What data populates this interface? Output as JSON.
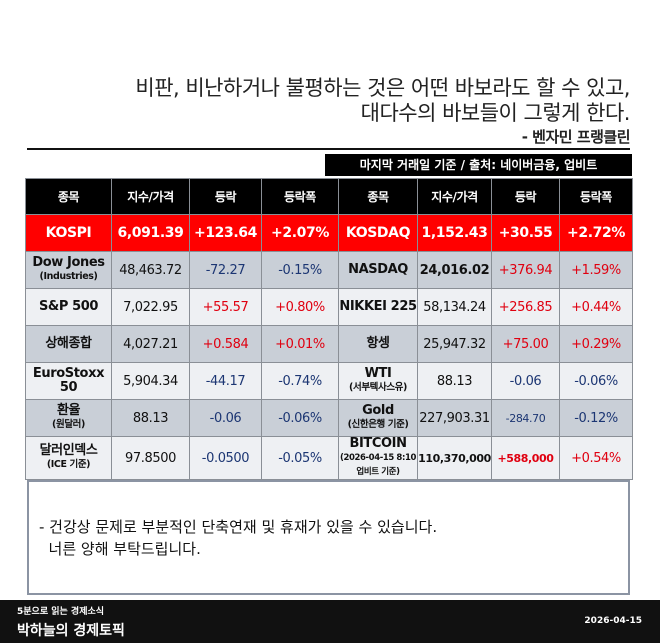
{
  "quote": {
    "line1": "비판, 비난하거나 불평하는 것은 어떤 바보라도 할 수 있고,",
    "line2": "대다수의 바보들이 그렇게 한다.",
    "author": "- 벤자민 프랭클린"
  },
  "source": "마지막 거래일 기준 / 출처: 네이버금융, 업비트",
  "headers": [
    "종목",
    "지수/가격",
    "등락",
    "등락폭",
    "종목",
    "지수/가격",
    "등락",
    "등락폭"
  ],
  "rows": [
    {
      "style": "hl",
      "l": {
        "name": "KOSPI",
        "sub": "",
        "price": "6,091.39",
        "chg": "+123.64",
        "pct": "+2.07%",
        "dir": "up"
      },
      "r": {
        "name": "KOSDAQ",
        "sub": "",
        "price": "1,152.43",
        "chg": "+30.55",
        "pct": "+2.72%",
        "dir": "up"
      }
    },
    {
      "style": "gray",
      "l": {
        "name": "Dow Jones",
        "sub": "(Industries)",
        "price": "48,463.72",
        "chg": "-72.27",
        "pct": "-0.15%",
        "dir": "down"
      },
      "r": {
        "name": "NASDAQ",
        "sub": "",
        "price": "24,016.02",
        "chg": "+376.94",
        "pct": "+1.59%",
        "dir": "up"
      }
    },
    {
      "style": "light",
      "l": {
        "name": "S&P 500",
        "sub": "",
        "price": "7,022.95",
        "chg": "+55.57",
        "pct": "+0.80%",
        "dir": "up"
      },
      "r": {
        "name": "NIKKEI 225",
        "sub": "",
        "price": "58,134.24",
        "chg": "+256.85",
        "pct": "+0.44%",
        "dir": "up"
      }
    },
    {
      "style": "gray",
      "l": {
        "name": "상해종합",
        "sub": "",
        "price": "4,027.21",
        "chg": "+0.584",
        "pct": "+0.01%",
        "dir": "up"
      },
      "r": {
        "name": "항셍",
        "sub": "",
        "price": "25,947.32",
        "chg": "+75.00",
        "pct": "+0.29%",
        "dir": "up"
      }
    },
    {
      "style": "light",
      "l": {
        "name": "EuroStoxx 50",
        "sub": "",
        "price": "5,904.34",
        "chg": "-44.17",
        "pct": "-0.74%",
        "dir": "down"
      },
      "r": {
        "name": "WTI",
        "sub": "(서부텍사스유)",
        "price": "88.13",
        "chg": "-0.06",
        "pct": "-0.06%",
        "dir": "down"
      }
    },
    {
      "style": "gray",
      "l": {
        "name": "환율",
        "sub": "(원달러)",
        "price": "88.13",
        "chg": "-0.06",
        "pct": "-0.06%",
        "dir": "down"
      },
      "r": {
        "name": "Gold",
        "sub": "(신한은행 기준)",
        "price": "227,903.31",
        "chg": "-284.70",
        "pct": "-0.12%",
        "dir": "down"
      }
    },
    {
      "style": "light",
      "l": {
        "name": "달러인덱스",
        "sub": "(ICE 기준)",
        "price": "97.8500",
        "chg": "-0.0500",
        "pct": "-0.05%",
        "dir": "down"
      },
      "r": {
        "name": "BITCOIN",
        "sub": "(2026-04-15 8:10 업비트 기준)",
        "price": "110,370,000",
        "chg": "+588,000",
        "pct": "+0.54%",
        "dir": "up"
      }
    }
  ],
  "notice": {
    "line1": "- 건강상 문제로 부분적인 단축연재 및 휴재가 있을 수 있습니다.",
    "line2": "너른 양해 부탁드립니다."
  },
  "footer": {
    "subtitle": "5분으로 읽는 경제소식",
    "title": "박하늘의 경제토픽",
    "date": "2026-04-15"
  },
  "colors": {
    "up": "#e00010",
    "down": "#1c3673",
    "highlight": "#ff0000"
  }
}
